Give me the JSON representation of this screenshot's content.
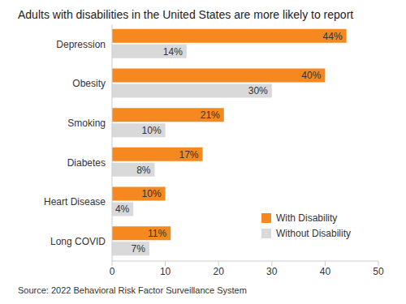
{
  "chart_data": {
    "type": "bar",
    "orientation": "horizontal",
    "title": "Adults with disabilities in the United States are more likely to report",
    "annotations": [
      "Source: 2022 Behavioral Risk Factor Surveillance System"
    ],
    "categories": [
      "Depression",
      "Obesity",
      "Smoking",
      "Diabetes",
      "Heart Disease",
      "Long COVID"
    ],
    "series": [
      {
        "name": "With Disability",
        "color": "#f5891f",
        "values": [
          44,
          40,
          21,
          17,
          10,
          11
        ],
        "value_labels": [
          "44%",
          "40%",
          "21%",
          "17%",
          "10%",
          "11%"
        ]
      },
      {
        "name": "Without Disability",
        "color": "#d9d9d9",
        "values": [
          14,
          30,
          10,
          8,
          4,
          7
        ],
        "value_labels": [
          "14%",
          "30%",
          "10%",
          "8%",
          "4%",
          "7%"
        ]
      }
    ],
    "xlim": [
      0,
      50
    ],
    "xticks": [
      0,
      10,
      20,
      30,
      40,
      50
    ],
    "grid": false,
    "legend": "lower right",
    "data_labels": true
  }
}
